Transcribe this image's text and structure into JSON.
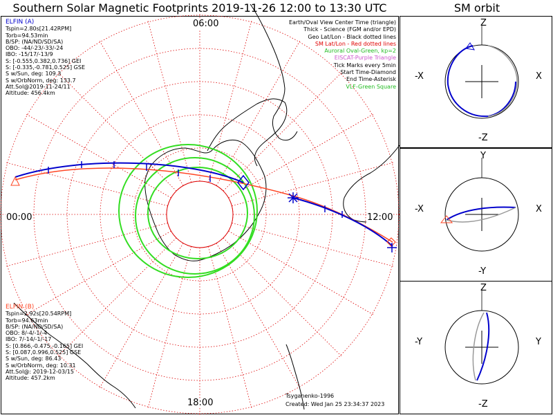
{
  "title": "Southern Solar Magnetic Footprints 2019-11-26 12:00 to 13:30 UTC",
  "sm_title": "SM orbit",
  "hour_labels": {
    "top": "06:00",
    "left": "00:00",
    "right": "12:00",
    "bottom": "18:00"
  },
  "sat_a": {
    "name": "ELFIN (A)",
    "lines": [
      "Tspin=2.80s[21.42RPM]",
      "Torb=94.53min",
      "B/SP: (NA/ND/SD/SA)",
      "OBO: -44/-23/-33/-24",
      "IBO: -15/17/-13/9",
      "S: [-0.555,0.382,0.736] GEI",
      "S: [-0.335,-0.781,0.525] GSE",
      "S w/Sun, deg: 109.3",
      "S w/OrbNorm, deg: 133.7",
      "Att.Sol@2019-11-24/11",
      "Altitude: 456.4km"
    ]
  },
  "sat_b": {
    "name": "ELFIN (B)",
    "lines": [
      "Tspin=2.92s[20.54RPM]",
      "Torb=94.63min",
      "B/SP: (NA/ND/SD/SA)",
      "OBO: 8/-4/-1/-4",
      "IBO: 7/-14/-1/-17",
      "S: [0.866,-0.475,-0.165] GEI",
      "S: [0.087,0.996,0.525] GSE",
      "S w/Sun, deg: 86.43",
      "S w/OrbNorm, deg: 10.31",
      "Att.Sol@: 2019-12-03/15",
      "Altitude: 457.2km"
    ]
  },
  "legend": [
    {
      "text": "Earth/Oval View Center Time (triangle)",
      "color": "#000000"
    },
    {
      "text": "Thick - Science (FGM and/or EPD)",
      "color": "#000000"
    },
    {
      "text": "Geo Lat/Lon - Black dotted lines",
      "color": "#000000"
    },
    {
      "text": "SM Lat/Lon - Red dotted lines",
      "color": "#e00000"
    },
    {
      "text": "Auroral Oval-Green, kp=2",
      "color": "#22bb22"
    },
    {
      "text": "EISCAT-Purple Triangle",
      "color": "#cc55cc"
    },
    {
      "text": "Tick Marks every 5min",
      "color": "#000000"
    },
    {
      "text": "Start Time-Diamond",
      "color": "#000000"
    },
    {
      "text": "End Time-Asterisk",
      "color": "#000000"
    },
    {
      "text": "VLF-Green Square",
      "color": "#22bb22"
    }
  ],
  "credit_model": "Tsyganenko-1996",
  "credit_created": "Created: Wed Jan 25 23:34:37 2023",
  "panels": [
    {
      "top": "Z",
      "bottom": "-Z",
      "left": "-X",
      "right": "X"
    },
    {
      "top": "Y",
      "bottom": "-Y",
      "left": "-X",
      "right": "X"
    },
    {
      "top": "Z",
      "bottom": "-Z",
      "left": "-Y",
      "right": "Y"
    }
  ],
  "colors": {
    "sat_a": "#0000cc",
    "sat_b": "#ff4422",
    "oval": "#33dd22",
    "grid_sm": "#dd0000",
    "grid_geo": "#000000",
    "sm_other": "#999999"
  }
}
